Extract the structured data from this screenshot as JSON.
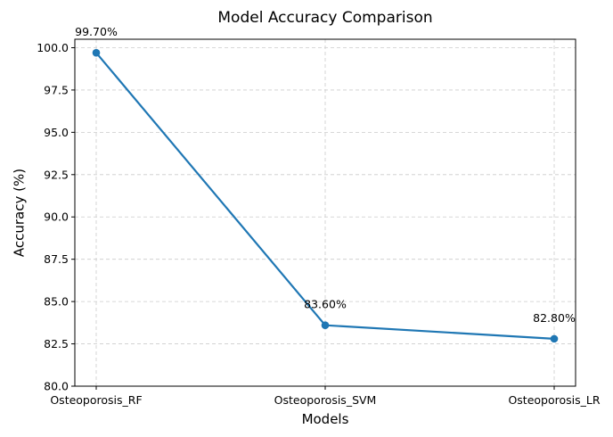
{
  "chart_data": {
    "type": "line",
    "title": "Model Accuracy Comparison",
    "xlabel": "Models",
    "ylabel": "Accuracy (%)",
    "categories": [
      "Osteoporosis_RF",
      "Osteoporosis_SVM",
      "Osteoporosis_LR"
    ],
    "series": [
      {
        "values": [
          99.7,
          83.6,
          82.8
        ]
      }
    ],
    "data_labels": [
      "99.70%",
      "83.60%",
      "82.80%"
    ],
    "ylim": [
      80.0,
      100.5
    ],
    "yticks": [
      80.0,
      82.5,
      85.0,
      87.5,
      90.0,
      92.5,
      95.0,
      97.5,
      100.0
    ],
    "ytick_labels": [
      "80.0",
      "82.5",
      "85.0",
      "87.5",
      "90.0",
      "92.5",
      "95.0",
      "97.5",
      "100.0"
    ],
    "grid": true,
    "grid_style": "dashed",
    "line_color": "#1f77b4",
    "marker": "circle"
  }
}
